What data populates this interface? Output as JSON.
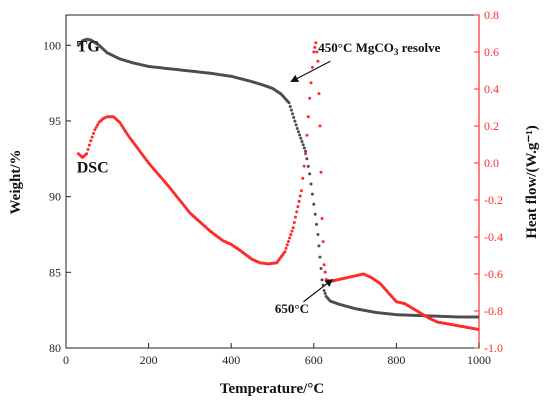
{
  "chart_data": {
    "type": "line",
    "x_axis": {
      "label": "Temperature/°C",
      "range": [
        0,
        1000
      ],
      "ticks": [
        0,
        200,
        400,
        600,
        800,
        1000
      ]
    },
    "y_left": {
      "label": "Weight/%",
      "range": [
        80,
        102
      ],
      "ticks": [
        80,
        85,
        90,
        95,
        100
      ]
    },
    "y_right": {
      "label": "Heat flow/(W.g⁻¹)",
      "range": [
        -1.0,
        0.8
      ],
      "ticks": [
        -1.0,
        -0.8,
        -0.6,
        -0.4,
        -0.2,
        0.0,
        0.2,
        0.4,
        0.6,
        0.8
      ],
      "color": "#ff2a2a"
    },
    "series": [
      {
        "name": "TG",
        "axis": "left",
        "color": "#4d4d4d",
        "points": [
          [
            30,
            100.0
          ],
          [
            40,
            100.3
          ],
          [
            50,
            100.4
          ],
          [
            60,
            100.35
          ],
          [
            80,
            100.0
          ],
          [
            100,
            99.5
          ],
          [
            130,
            99.1
          ],
          [
            160,
            98.85
          ],
          [
            200,
            98.6
          ],
          [
            250,
            98.45
          ],
          [
            300,
            98.3
          ],
          [
            350,
            98.15
          ],
          [
            400,
            97.95
          ],
          [
            450,
            97.6
          ],
          [
            480,
            97.35
          ],
          [
            500,
            97.15
          ],
          [
            520,
            96.8
          ],
          [
            540,
            96.2
          ],
          [
            560,
            94.5
          ],
          [
            580,
            93.0
          ],
          [
            590,
            91.5
          ],
          [
            600,
            89.5
          ],
          [
            610,
            87.5
          ],
          [
            615,
            86.0
          ],
          [
            620,
            84.5
          ],
          [
            625,
            83.8
          ],
          [
            630,
            83.4
          ],
          [
            640,
            83.1
          ],
          [
            660,
            82.9
          ],
          [
            700,
            82.6
          ],
          [
            750,
            82.35
          ],
          [
            800,
            82.2
          ],
          [
            850,
            82.15
          ],
          [
            900,
            82.1
          ],
          [
            950,
            82.05
          ],
          [
            1000,
            82.05
          ]
        ]
      },
      {
        "name": "DSC",
        "axis": "right",
        "color": "#ff2a2a",
        "points": [
          [
            30,
            0.05
          ],
          [
            40,
            0.03
          ],
          [
            50,
            0.05
          ],
          [
            60,
            0.12
          ],
          [
            70,
            0.18
          ],
          [
            80,
            0.22
          ],
          [
            90,
            0.24
          ],
          [
            100,
            0.25
          ],
          [
            115,
            0.25
          ],
          [
            130,
            0.22
          ],
          [
            150,
            0.15
          ],
          [
            200,
            0.0
          ],
          [
            250,
            -0.13
          ],
          [
            300,
            -0.27
          ],
          [
            350,
            -0.37
          ],
          [
            380,
            -0.42
          ],
          [
            400,
            -0.44
          ],
          [
            420,
            -0.47
          ],
          [
            450,
            -0.52
          ],
          [
            470,
            -0.54
          ],
          [
            490,
            -0.545
          ],
          [
            510,
            -0.54
          ],
          [
            530,
            -0.48
          ],
          [
            550,
            -0.35
          ],
          [
            570,
            -0.15
          ],
          [
            580,
            0.05
          ],
          [
            590,
            0.35
          ],
          [
            600,
            0.6
          ],
          [
            605,
            0.65
          ],
          [
            610,
            0.55
          ],
          [
            615,
            0.2
          ],
          [
            620,
            -0.3
          ],
          [
            625,
            -0.55
          ],
          [
            630,
            -0.63
          ],
          [
            640,
            -0.64
          ],
          [
            660,
            -0.63
          ],
          [
            680,
            -0.62
          ],
          [
            700,
            -0.61
          ],
          [
            720,
            -0.6
          ],
          [
            740,
            -0.62
          ],
          [
            760,
            -0.65
          ],
          [
            780,
            -0.7
          ],
          [
            800,
            -0.75
          ],
          [
            820,
            -0.76
          ],
          [
            850,
            -0.8
          ],
          [
            880,
            -0.84
          ],
          [
            900,
            -0.86
          ],
          [
            950,
            -0.88
          ],
          [
            1000,
            -0.9
          ]
        ]
      }
    ],
    "series_labels": [
      {
        "text": "TG",
        "x": 55,
        "y": 99.6,
        "axis": "left"
      },
      {
        "text": "DSC",
        "x": 55,
        "y": -0.05,
        "axis": "right"
      }
    ],
    "annotations": [
      {
        "text": "450°C MgCO",
        "sub": "3",
        "suffix": " resolve",
        "text_x": 635,
        "text_y": 0.6,
        "arrow_from": [
          640,
          0.55
        ],
        "arrow_to": [
          545,
          0.44
        ],
        "axis": "right"
      },
      {
        "text": "650°C",
        "text_x": 530,
        "text_y": -0.81,
        "arrow_from": [
          575,
          -0.75
        ],
        "arrow_to": [
          645,
          -0.63
        ],
        "axis": "right"
      }
    ]
  }
}
